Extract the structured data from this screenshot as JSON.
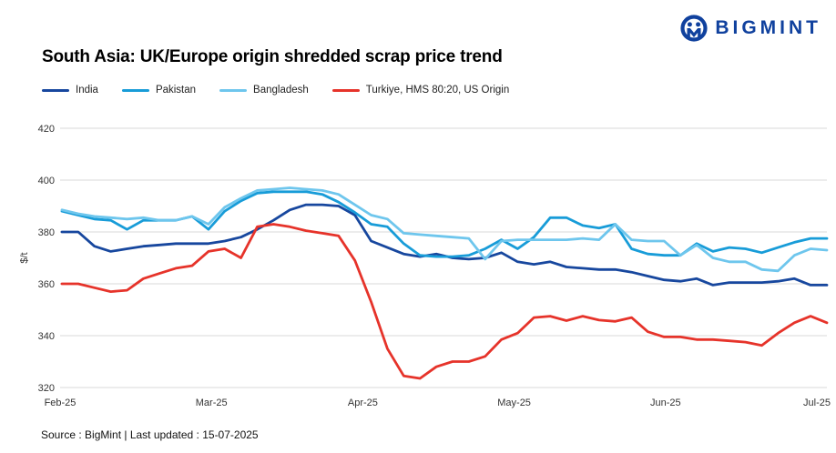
{
  "logo": {
    "brand": "BIGMINT"
  },
  "header": {
    "title": "South Asia: UK/Europe origin shredded scrap price trend"
  },
  "footer": {
    "text": "Source : BigMint | Last updated : 15-07-2025"
  },
  "colors": {
    "brand_navy": "#10419e",
    "india": "#17479e",
    "pakistan": "#189cd8",
    "bangladesh": "#6ec6ed",
    "turkiye": "#e6332a",
    "gridline": "#d9d9d9",
    "tick_text": "#333333"
  },
  "chart_data": {
    "type": "line",
    "title": "South Asia: UK/Europe origin shredded scrap price trend",
    "xlabel": "",
    "ylabel": "$/t",
    "ylim": [
      320,
      420
    ],
    "yticks": [
      420,
      400,
      380,
      360,
      340,
      320
    ],
    "xticklabels": [
      "Feb-25",
      "Mar-25",
      "Apr-25",
      "May-25",
      "Jun-25",
      "Jul-25"
    ],
    "grid": "horizontal",
    "legend_position": "top-left",
    "series": [
      {
        "name": "India",
        "color": "#17479e",
        "values": [
          380,
          380,
          374.5,
          372.5,
          373.5,
          374.5,
          375,
          375.5,
          375.5,
          375.5,
          376.5,
          378,
          381,
          384.5,
          388.5,
          390.5,
          390.5,
          390,
          386.5,
          376.5,
          374,
          371.5,
          370.5,
          371.5,
          370,
          369.5,
          370,
          372,
          368.5,
          367.5,
          368.5,
          366.5,
          366,
          365.5,
          365.5,
          364.5,
          363,
          361.5,
          361,
          362,
          359.5,
          360.5,
          360.5,
          360.5,
          361,
          362,
          359.5,
          359.5
        ]
      },
      {
        "name": "Pakistan",
        "color": "#189cd8",
        "values": [
          388,
          386.5,
          385,
          384.5,
          381,
          384.5,
          384.5,
          384.5,
          386,
          381,
          388,
          392,
          395,
          395.5,
          395.5,
          395.5,
          394.5,
          391.5,
          387.5,
          383,
          382,
          375.5,
          371,
          370.5,
          370.5,
          371,
          373.5,
          377,
          373.5,
          378,
          385.5,
          385.5,
          382.5,
          381.5,
          383,
          373.5,
          371.5,
          371,
          371,
          375.5,
          372.5,
          374,
          373.5,
          372,
          374,
          376,
          377.5,
          377.5
        ]
      },
      {
        "name": "Bangladesh",
        "color": "#6ec6ed",
        "values": [
          388.5,
          387,
          386,
          385.5,
          385,
          385.5,
          384.5,
          384.5,
          386,
          383,
          389.5,
          393,
          396,
          396.5,
          397,
          396.5,
          396,
          394.5,
          390.5,
          386.5,
          385,
          379.5,
          379,
          378.5,
          378,
          377.5,
          369.5,
          376.5,
          377,
          377,
          377,
          377,
          377.5,
          377,
          383,
          377,
          376.5,
          376.5,
          371,
          375,
          370,
          368.5,
          368.5,
          365.5,
          365,
          371,
          373.5,
          373
        ]
      },
      {
        "name": "Turkiye, HMS 80:20, US Origin",
        "color": "#e6332a",
        "values": [
          360,
          360,
          358.5,
          357,
          357.5,
          362,
          364,
          366,
          367,
          372.5,
          373.5,
          370,
          382,
          383,
          382,
          380.5,
          379.5,
          378.5,
          369,
          353,
          335,
          324.5,
          323.5,
          328,
          330,
          330,
          332,
          338.5,
          341,
          347,
          347.5,
          345.8,
          347.5,
          346,
          345.5,
          347,
          341.5,
          339.5,
          339.5,
          338.5,
          338.5,
          338,
          337.5,
          336.2,
          341,
          345,
          347.5,
          345
        ]
      }
    ]
  }
}
